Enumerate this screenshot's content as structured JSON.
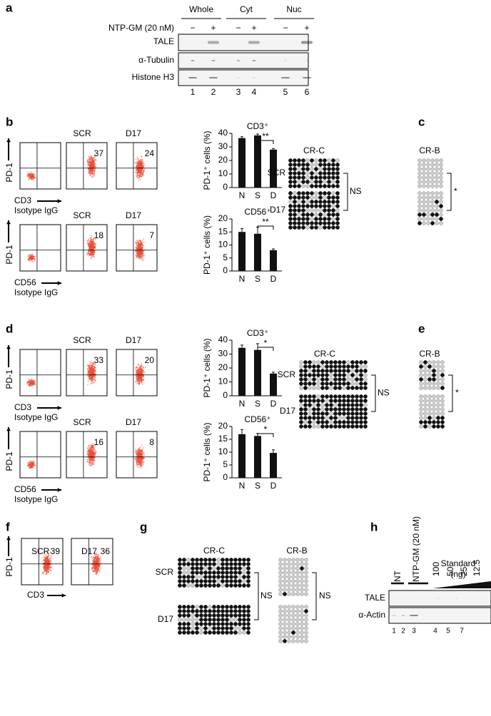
{
  "panel_letters": [
    "a",
    "b",
    "c",
    "d",
    "e",
    "f",
    "g",
    "h"
  ],
  "a": {
    "groups": [
      "Whole",
      "Cyt",
      "Nuc"
    ],
    "treatment": "NTP-GM (20 nM)",
    "signs": [
      "−",
      "+",
      "−",
      "+",
      "−",
      "+"
    ],
    "blots": [
      "TALE",
      "α-Tubulin",
      "Histone H3"
    ],
    "lanes": [
      "1",
      "2",
      "3",
      "4",
      "5",
      "6"
    ]
  },
  "b": {
    "flow_rows": [
      {
        "y_marker": "PD-1",
        "x_marker": "CD3",
        "control": "Isotype IgG",
        "samples": [
          "SCR",
          "D17"
        ],
        "percents": [
          37,
          24
        ]
      },
      {
        "y_marker": "PD-1",
        "x_marker": "CD56",
        "control": "Isotype IgG",
        "samples": [
          "SCR",
          "D17"
        ],
        "percents": [
          18,
          7
        ]
      }
    ],
    "bar_charts": [
      {
        "type": "bar",
        "title": "CD3⁺",
        "y_label": "PD-1⁺ cells (%)",
        "categories": [
          "N",
          "S",
          "D"
        ],
        "values": [
          36.5,
          38.5,
          28
        ],
        "errors": [
          1,
          1,
          0.8
        ],
        "ylim": [
          0,
          40
        ],
        "yticks": [
          0,
          10,
          20,
          30,
          40
        ],
        "significance": "**"
      },
      {
        "type": "bar",
        "title": "CD56⁺",
        "y_label": "PD-1⁺ cells (%)",
        "categories": [
          "N",
          "S",
          "D"
        ],
        "values": [
          15,
          14.3,
          8
        ],
        "errors": [
          1.3,
          2.5,
          0.5
        ],
        "ylim": [
          0,
          20
        ],
        "yticks": [
          0,
          5,
          10,
          15,
          20
        ],
        "significance": "**"
      }
    ]
  },
  "c": {
    "regions": [
      "CR-C",
      "CR-B"
    ],
    "samples": [
      "SCR",
      "D17"
    ],
    "tests": [
      "NS",
      "*"
    ]
  },
  "d": {
    "flow_rows": [
      {
        "y_marker": "PD-1",
        "x_marker": "CD3",
        "control": "Isotype IgG",
        "samples": [
          "SCR",
          "D17"
        ],
        "percents": [
          33,
          20
        ]
      },
      {
        "y_marker": "PD-1",
        "x_marker": "CD56",
        "control": "Isotype IgG",
        "samples": [
          "SCR",
          "D17"
        ],
        "percents": [
          16,
          8
        ]
      }
    ],
    "bar_charts": [
      {
        "type": "bar",
        "title": "CD3⁺",
        "y_label": "PD-1⁺ cells (%)",
        "categories": [
          "N",
          "S",
          "D"
        ],
        "values": [
          34.5,
          33,
          16
        ],
        "errors": [
          2,
          4.5,
          1
        ],
        "ylim": [
          0,
          40
        ],
        "yticks": [
          0,
          10,
          20,
          30,
          40
        ],
        "significance": "*"
      },
      {
        "type": "bar",
        "title": "CD56⁺",
        "y_label": "PD-1⁺ cells (%)",
        "categories": [
          "N",
          "S",
          "D"
        ],
        "values": [
          17,
          16.3,
          9.7
        ],
        "errors": [
          1.8,
          1,
          1.2
        ],
        "ylim": [
          0,
          20
        ],
        "yticks": [
          0,
          5,
          10,
          15,
          20
        ],
        "significance": "*"
      }
    ]
  },
  "e": {
    "regions": [
      "CR-C",
      "CR-B"
    ],
    "samples": [
      "SCR",
      "D17"
    ],
    "tests": [
      "NS",
      "*"
    ]
  },
  "f": {
    "y_marker": "PD-1",
    "x_marker": "CD3",
    "samples": [
      "SCR",
      "D17"
    ],
    "percents": [
      39,
      36
    ]
  },
  "g": {
    "regions": [
      "CR-C",
      "CR-B"
    ],
    "samples": [
      "SCR",
      "D17"
    ],
    "tests": [
      "NS",
      "NS"
    ]
  },
  "h": {
    "controls": [
      "NT",
      "NTP-GM (20 nM)"
    ],
    "standard": "Standard",
    "standard_unit": "(ng)",
    "amounts": [
      "100",
      "50",
      "25",
      "12.5"
    ],
    "blots": [
      "TALE",
      "α-Actin"
    ],
    "lanes": [
      "1",
      "2",
      "3",
      "4",
      "5",
      "7"
    ]
  }
}
